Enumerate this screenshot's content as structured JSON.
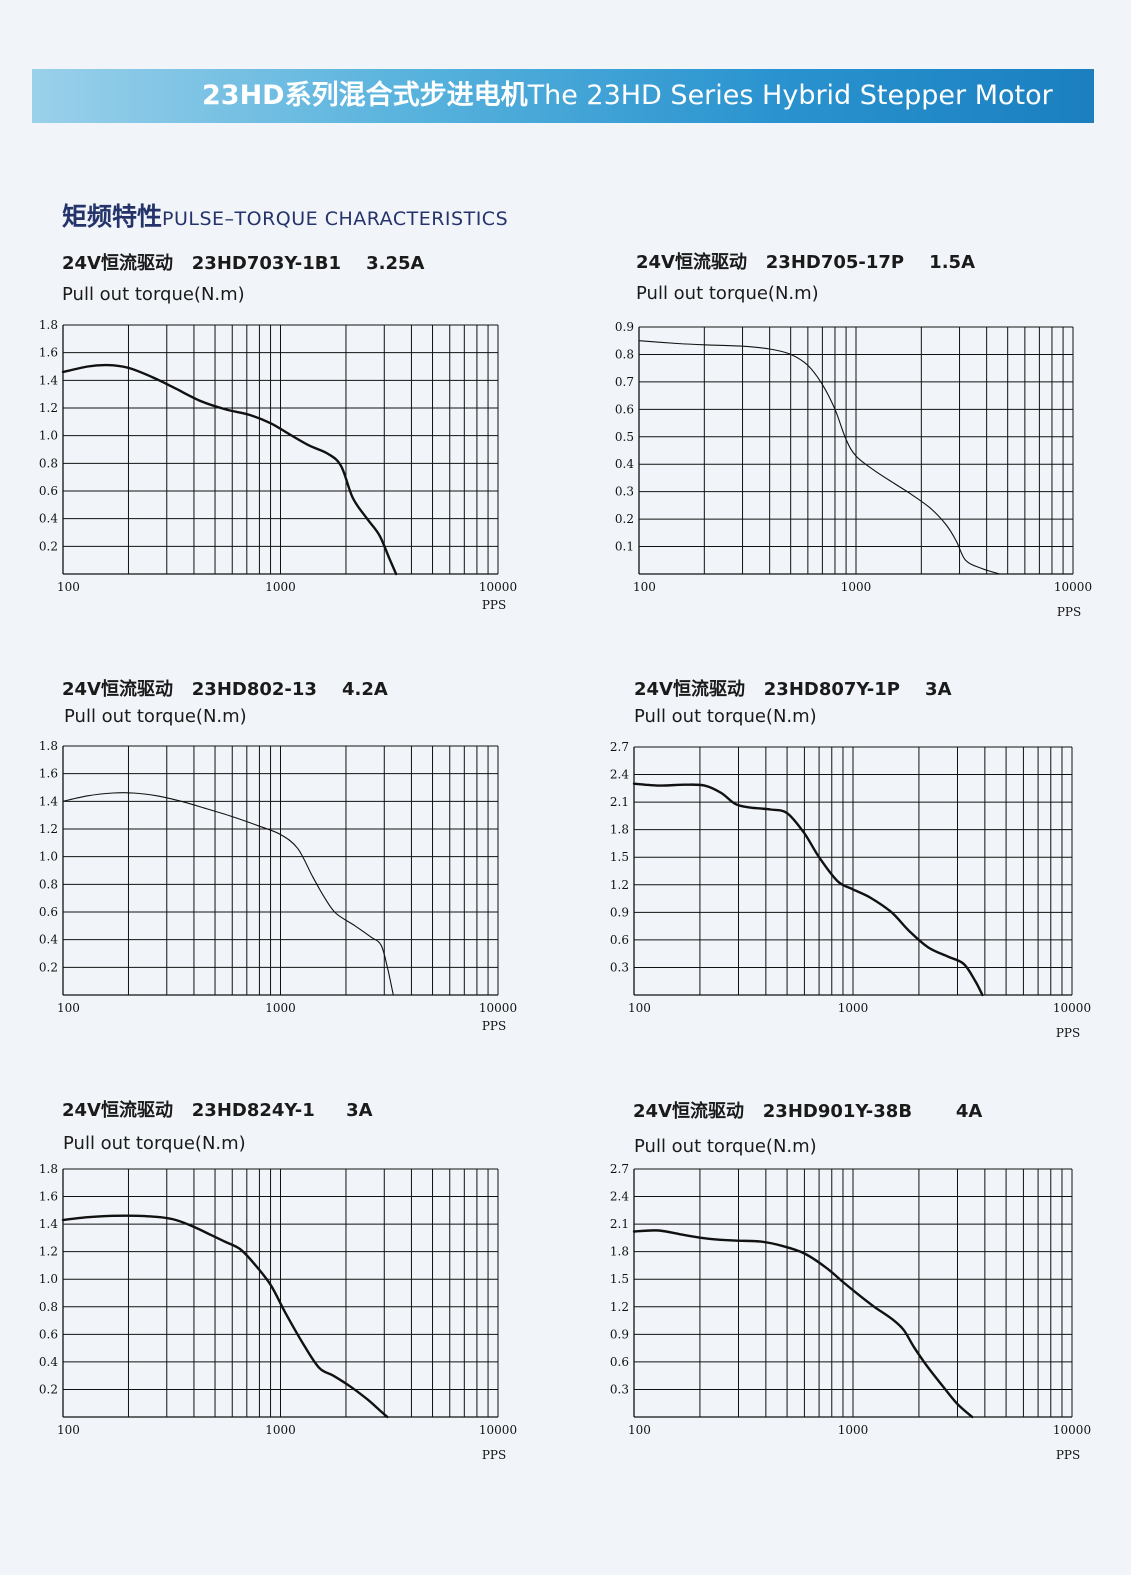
{
  "header": {
    "title_cn": "23HD系列混合式步进电机",
    "title_en": "The 23HD Series Hybrid Stepper  Motor"
  },
  "section": {
    "title_cn": "矩频特性",
    "title_en": "PULSE–TORQUE CHARACTERISTICS"
  },
  "colors": {
    "banner_start": "#9ad0ea",
    "banner_end": "#1b7fc0",
    "section_title": "#25336b"
  },
  "chart_data": [
    {
      "type": "line",
      "title": "24V恒流驱动   23HD703Y-1B1    3.25A",
      "ylabel": "Pull out torque(N.m)",
      "xlabel": "PPS",
      "x_scale": "log",
      "xlim": [
        100,
        10000
      ],
      "x_ticks": [
        100,
        1000,
        10000
      ],
      "x_tick_labels": [
        "100",
        "1000",
        "10000"
      ],
      "ylim": [
        0,
        1.8
      ],
      "y_ticks": [
        0.2,
        0.4,
        0.6,
        0.8,
        1.0,
        1.2,
        1.4,
        1.6,
        1.8
      ],
      "y_tick_labels": [
        "0.2",
        "0.4",
        "0.6",
        "0.8",
        "1.0",
        "1.2",
        "1.4",
        "1.6",
        "1.8"
      ],
      "grid": true,
      "line_style": "bold",
      "series": [
        {
          "x": [
            100,
            130,
            160,
            200,
            260,
            330,
            430,
            560,
            720,
            900,
            1100,
            1350,
            1650,
            1900,
            2150,
            2500,
            2850,
            3150,
            3400
          ],
          "y": [
            1.46,
            1.5,
            1.51,
            1.49,
            1.42,
            1.34,
            1.25,
            1.19,
            1.15,
            1.09,
            1.01,
            0.93,
            0.87,
            0.78,
            0.55,
            0.4,
            0.28,
            0.12,
            0.0
          ]
        }
      ]
    },
    {
      "type": "line",
      "title": "24V恒流驱动   23HD705-17P    1.5A",
      "ylabel": "Pull out torque(N.m)",
      "xlabel": "PPS",
      "x_scale": "log",
      "xlim": [
        100,
        10000
      ],
      "x_ticks": [
        100,
        1000,
        10000
      ],
      "x_tick_labels": [
        "100",
        "1000",
        "10000"
      ],
      "ylim": [
        0,
        0.9
      ],
      "y_ticks": [
        0.1,
        0.2,
        0.3,
        0.4,
        0.5,
        0.6,
        0.7,
        0.8,
        0.9
      ],
      "y_tick_labels": [
        "0.1",
        "0.2",
        "0.3",
        "0.4",
        "0.5",
        "0.6",
        "0.7",
        "0.8",
        "0.9"
      ],
      "grid": true,
      "line_style": "thin",
      "series": [
        {
          "x": [
            100,
            150,
            200,
            300,
            400,
            500,
            600,
            700,
            800,
            900,
            1000,
            1200,
            1500,
            1800,
            2200,
            2600,
            2900,
            3200,
            3800,
            4600
          ],
          "y": [
            0.85,
            0.84,
            0.835,
            0.83,
            0.82,
            0.8,
            0.76,
            0.69,
            0.6,
            0.49,
            0.43,
            0.38,
            0.33,
            0.29,
            0.24,
            0.18,
            0.12,
            0.05,
            0.02,
            0.0
          ]
        }
      ]
    },
    {
      "type": "line",
      "title": "24V恒流驱动   23HD802-13    4.2A",
      "ylabel": "Pull out torque(N.m)",
      "xlabel": "PPS",
      "x_scale": "log",
      "xlim": [
        100,
        10000
      ],
      "x_ticks": [
        100,
        1000,
        10000
      ],
      "x_tick_labels": [
        "100",
        "1000",
        "10000"
      ],
      "ylim": [
        0,
        1.8
      ],
      "y_ticks": [
        0.2,
        0.4,
        0.6,
        0.8,
        1.0,
        1.2,
        1.4,
        1.6,
        1.8
      ],
      "y_tick_labels": [
        "0.2",
        "0.4",
        "0.6",
        "0.8",
        "1.0",
        "1.2",
        "1.4",
        "1.6",
        "1.8"
      ],
      "grid": true,
      "line_style": "thin",
      "series": [
        {
          "x": [
            100,
            130,
            170,
            210,
            270,
            350,
            450,
            600,
            800,
            1000,
            1200,
            1400,
            1600,
            1800,
            2200,
            2600,
            2900,
            3100,
            3300
          ],
          "y": [
            1.4,
            1.44,
            1.46,
            1.46,
            1.44,
            1.4,
            1.35,
            1.29,
            1.22,
            1.16,
            1.06,
            0.86,
            0.7,
            0.59,
            0.5,
            0.42,
            0.36,
            0.2,
            0.0
          ]
        }
      ]
    },
    {
      "type": "line",
      "title": "24V恒流驱动   23HD807Y-1P    3A",
      "ylabel": "Pull out torque(N.m)",
      "xlabel": "PPS",
      "x_scale": "log",
      "xlim": [
        100,
        10000
      ],
      "x_ticks": [
        100,
        1000,
        10000
      ],
      "x_tick_labels": [
        "100",
        "1000",
        "10000"
      ],
      "ylim": [
        0,
        2.7
      ],
      "y_ticks": [
        0.3,
        0.6,
        0.9,
        1.2,
        1.5,
        1.8,
        2.1,
        2.4,
        2.7
      ],
      "y_tick_labels": [
        "0.3",
        "0.6",
        "0.9",
        "1.2",
        "1.5",
        "1.8",
        "2.1",
        "2.4",
        "2.7"
      ],
      "grid": true,
      "line_style": "bold",
      "series": [
        {
          "x": [
            100,
            130,
            170,
            210,
            250,
            290,
            340,
            420,
            500,
            600,
            700,
            850,
            1000,
            1200,
            1500,
            1800,
            2200,
            2700,
            3200,
            3600,
            3900
          ],
          "y": [
            2.3,
            2.28,
            2.29,
            2.28,
            2.2,
            2.08,
            2.04,
            2.02,
            1.98,
            1.76,
            1.5,
            1.24,
            1.15,
            1.06,
            0.9,
            0.7,
            0.52,
            0.42,
            0.34,
            0.16,
            0.0
          ]
        }
      ]
    },
    {
      "type": "line",
      "title": "24V恒流驱动   23HD824Y-1     3A",
      "ylabel": "Pull out torque(N.m)",
      "xlabel": "PPS",
      "x_scale": "log",
      "xlim": [
        100,
        10000
      ],
      "x_ticks": [
        100,
        1000,
        10000
      ],
      "x_tick_labels": [
        "100",
        "1000",
        "10000"
      ],
      "ylim": [
        0,
        1.8
      ],
      "y_ticks": [
        0.2,
        0.4,
        0.6,
        0.8,
        1.0,
        1.2,
        1.4,
        1.6,
        1.8
      ],
      "y_tick_labels": [
        "0.2",
        "0.4",
        "0.6",
        "0.8",
        "1.0",
        "1.2",
        "1.4",
        "1.6",
        "1.8"
      ],
      "grid": true,
      "line_style": "bold",
      "series": [
        {
          "x": [
            100,
            130,
            170,
            220,
            280,
            330,
            400,
            480,
            560,
            650,
            750,
            900,
            1050,
            1250,
            1500,
            1750,
            2100,
            2500,
            2900,
            3100
          ],
          "y": [
            1.43,
            1.45,
            1.46,
            1.46,
            1.45,
            1.43,
            1.38,
            1.32,
            1.27,
            1.22,
            1.12,
            0.96,
            0.76,
            0.55,
            0.36,
            0.3,
            0.22,
            0.13,
            0.04,
            0.0
          ]
        }
      ]
    },
    {
      "type": "line",
      "title": "24V恒流驱动   23HD901Y-38B       4A",
      "ylabel": "Pull out torque(N.m)",
      "xlabel": "PPS",
      "x_scale": "log",
      "xlim": [
        100,
        10000
      ],
      "x_ticks": [
        100,
        1000,
        10000
      ],
      "x_tick_labels": [
        "100",
        "1000",
        "10000"
      ],
      "ylim": [
        0,
        2.7
      ],
      "y_ticks": [
        0.3,
        0.6,
        0.9,
        1.2,
        1.5,
        1.8,
        2.1,
        2.4,
        2.7
      ],
      "y_tick_labels": [
        "0.3",
        "0.6",
        "0.9",
        "1.2",
        "1.5",
        "1.8",
        "2.1",
        "2.4",
        "2.7"
      ],
      "grid": true,
      "line_style": "bold",
      "series": [
        {
          "x": [
            100,
            130,
            170,
            220,
            290,
            380,
            480,
            600,
            750,
            900,
            1050,
            1250,
            1500,
            1700,
            1900,
            2200,
            2600,
            3000,
            3500
          ],
          "y": [
            2.02,
            2.03,
            1.98,
            1.94,
            1.92,
            1.91,
            1.86,
            1.78,
            1.63,
            1.47,
            1.34,
            1.2,
            1.07,
            0.95,
            0.76,
            0.54,
            0.32,
            0.14,
            0.0
          ]
        }
      ]
    }
  ]
}
